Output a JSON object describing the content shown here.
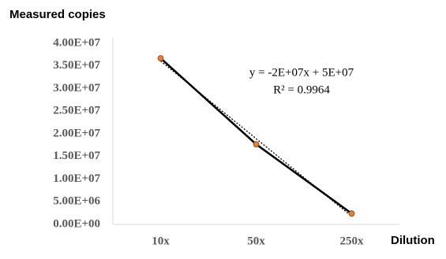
{
  "chart_data": {
    "type": "line",
    "y_axis_title": "Measured copies",
    "x_axis_title": "Dilution",
    "annotations": [
      "y = -2E+07x + 5E+07",
      "R² = 0.9964"
    ],
    "categories": [
      "10x",
      "50x",
      "250x"
    ],
    "series": [
      {
        "values": [
          36700000,
          17700000,
          2400000
        ],
        "color": "#000000",
        "marker_color": "#ed7d31"
      }
    ],
    "trendline": "linear",
    "ylim": [
      0,
      40000000
    ],
    "yticks": [
      {
        "value": 0,
        "label": "0.00E+00"
      },
      {
        "value": 5000000,
        "label": "5.00E+06"
      },
      {
        "value": 10000000,
        "label": "1.00E+07"
      },
      {
        "value": 15000000,
        "label": "1.50E+07"
      },
      {
        "value": 20000000,
        "label": "2.00E+07"
      },
      {
        "value": 25000000,
        "label": "2.50E+07"
      },
      {
        "value": 30000000,
        "label": "3.00E+07"
      },
      {
        "value": 35000000,
        "label": "3.50E+07"
      },
      {
        "value": 40000000,
        "label": "4.00E+07"
      }
    ],
    "grid": false
  }
}
